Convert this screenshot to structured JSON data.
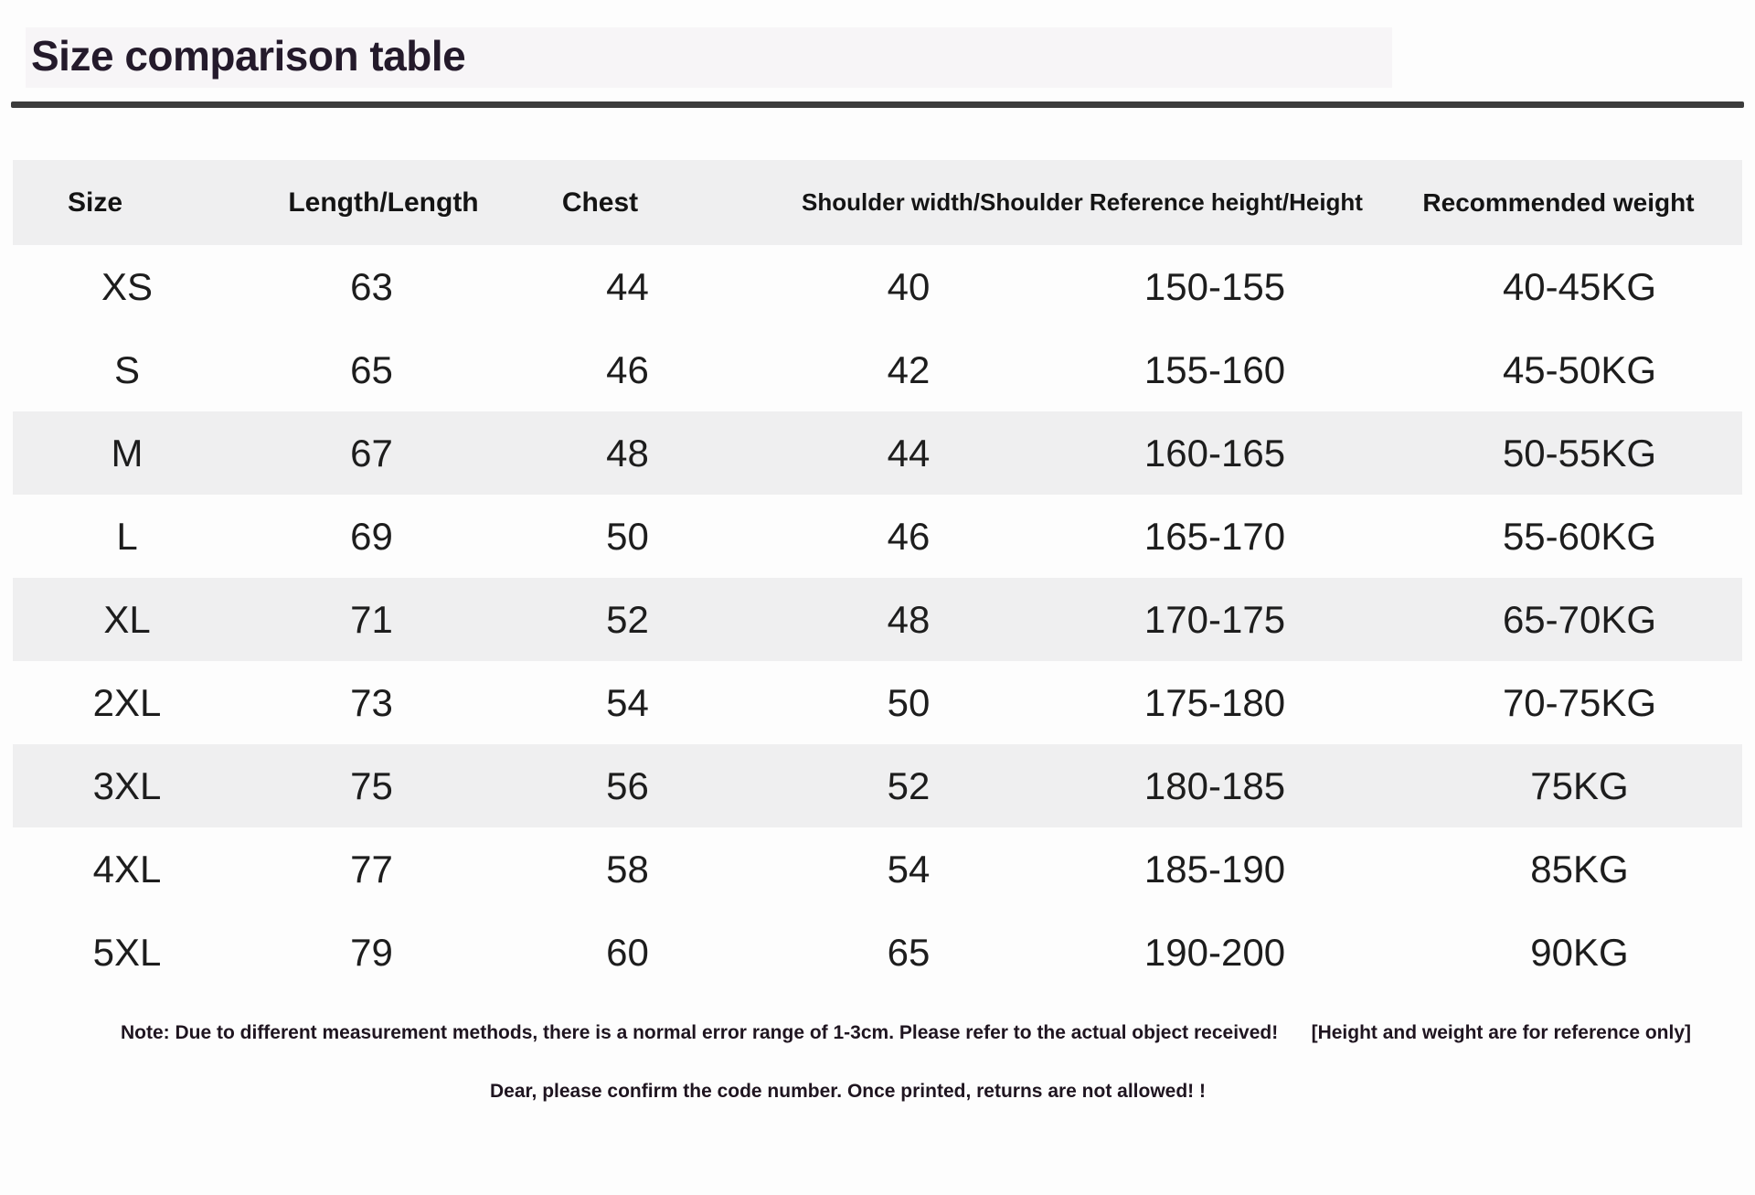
{
  "page": {
    "title": "Size comparison table"
  },
  "colors": {
    "page_bg": "#fdfdfd",
    "stripe": "#efeff0",
    "rule": "#3c3c3c",
    "title": "#241a2b",
    "text": "#1d1d1d"
  },
  "table": {
    "headers": {
      "size": "Size",
      "length": "Length/Length",
      "chest": "Chest",
      "shoulder_height": "Shoulder width/Shoulder Reference height/Height",
      "weight": "Recommended weight"
    },
    "rows": [
      {
        "size": "XS",
        "length": "63",
        "chest": "44",
        "shoulder": "40",
        "height": "150-155",
        "weight": "40-45KG",
        "striped": false
      },
      {
        "size": "S",
        "length": "65",
        "chest": "46",
        "shoulder": "42",
        "height": "155-160",
        "weight": "45-50KG",
        "striped": false
      },
      {
        "size": "M",
        "length": "67",
        "chest": "48",
        "shoulder": "44",
        "height": "160-165",
        "weight": "50-55KG",
        "striped": true
      },
      {
        "size": "L",
        "length": "69",
        "chest": "50",
        "shoulder": "46",
        "height": "165-170",
        "weight": "55-60KG",
        "striped": false
      },
      {
        "size": "XL",
        "length": "71",
        "chest": "52",
        "shoulder": "48",
        "height": "170-175",
        "weight": "65-70KG",
        "striped": true
      },
      {
        "size": "2XL",
        "length": "73",
        "chest": "54",
        "shoulder": "50",
        "height": "175-180",
        "weight": "70-75KG",
        "striped": false
      },
      {
        "size": "3XL",
        "length": "75",
        "chest": "56",
        "shoulder": "52",
        "height": "180-185",
        "weight": "75KG",
        "striped": true
      },
      {
        "size": "4XL",
        "length": "77",
        "chest": "58",
        "shoulder": "54",
        "height": "185-190",
        "weight": "85KG",
        "striped": false
      },
      {
        "size": "5XL",
        "length": "79",
        "chest": "60",
        "shoulder": "65",
        "height": "190-200",
        "weight": "90KG",
        "striped": false
      }
    ]
  },
  "notes": {
    "note1": "Note: Due to different measurement methods, there is a normal error range of 1-3cm. Please refer to the actual object received!",
    "note2": "[Height and weight are for reference only]",
    "note3": "Dear, please confirm the code number. Once printed, returns are not allowed! !"
  }
}
